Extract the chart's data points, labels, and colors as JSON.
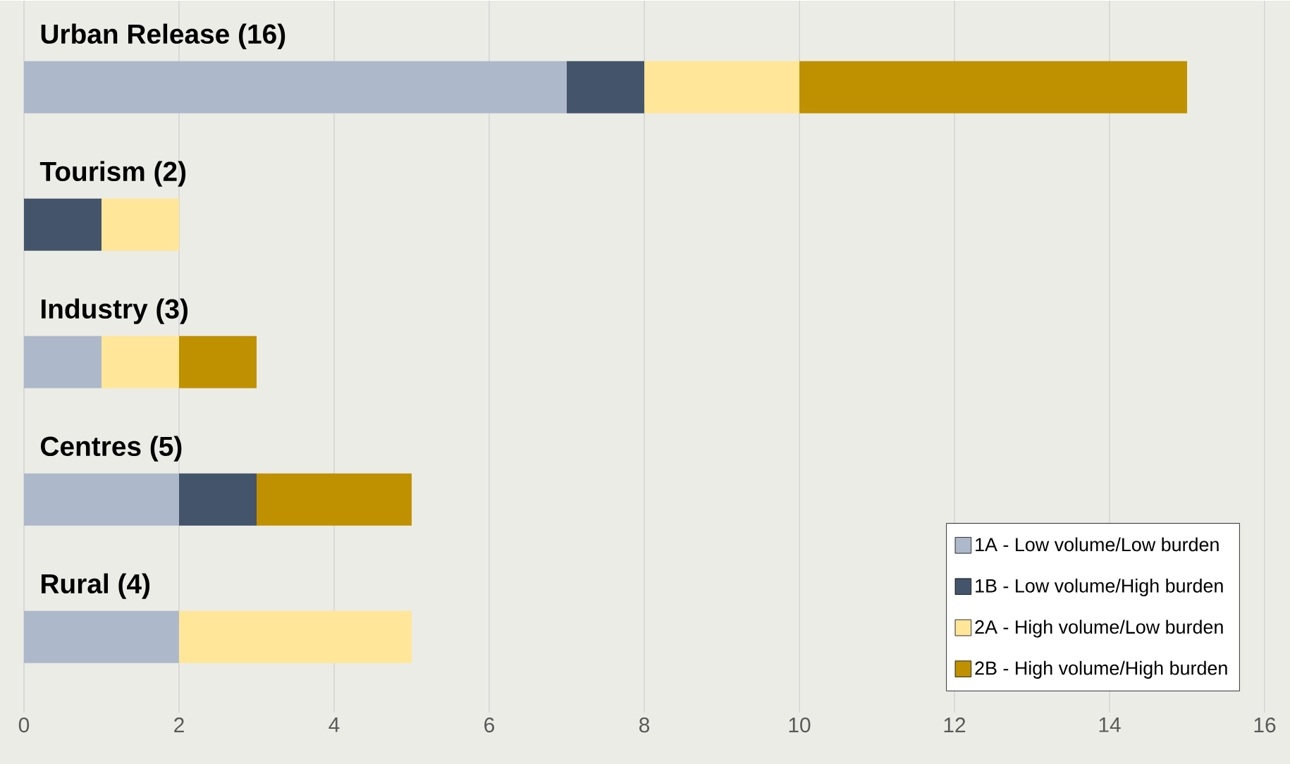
{
  "chart_data": {
    "type": "bar",
    "orientation": "horizontal",
    "stacked": true,
    "categories": [
      "Urban Release (16)",
      "Tourism (2)",
      "Industry (3)",
      "Centres (5)",
      "Rural (4)"
    ],
    "series": [
      {
        "name": "1A - Low volume/Low burden",
        "color": "#adb9ca",
        "values": [
          7,
          0,
          1,
          2,
          2
        ]
      },
      {
        "name": "1B - Low volume/High burden",
        "color": "#44546a",
        "values": [
          1,
          1,
          0,
          1,
          0
        ]
      },
      {
        "name": "2A - High volume/Low burden",
        "color": "#ffe699",
        "values": [
          2,
          1,
          1,
          0,
          3
        ]
      },
      {
        "name": "2B - High volume/High burden",
        "color": "#bf9000",
        "values": [
          5,
          0,
          1,
          2,
          0
        ]
      }
    ],
    "xlim": [
      0,
      16
    ],
    "xticks": [
      0,
      2,
      4,
      6,
      8,
      10,
      12,
      14,
      16
    ],
    "grid": "x",
    "legend": "bottom right"
  }
}
